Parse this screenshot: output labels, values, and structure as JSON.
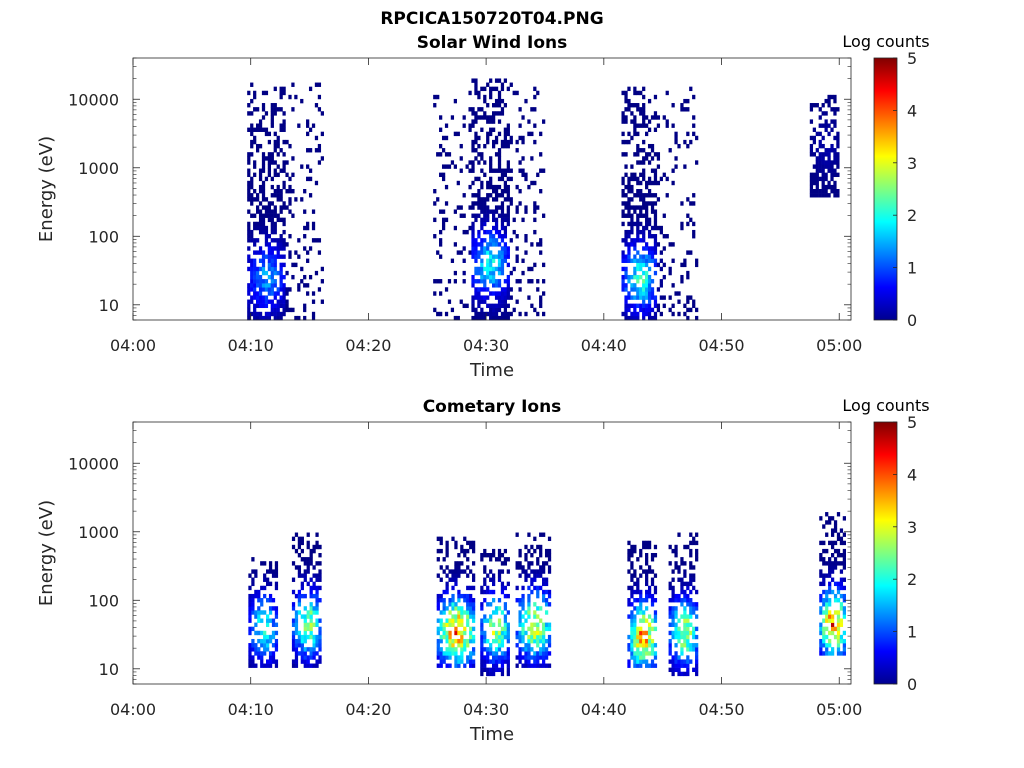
{
  "figure_title": "RPCICA150720T04.PNG",
  "colors": {
    "axis": "#262626",
    "background": "#ffffff"
  },
  "chart_data": [
    {
      "type": "heatmap",
      "title": "Solar Wind Ions",
      "xlabel": "Time",
      "ylabel": "Energy (eV)",
      "x_ticks": [
        "04:00",
        "04:10",
        "04:20",
        "04:30",
        "04:40",
        "04:50",
        "05:00"
      ],
      "xlim_minutes": [
        0,
        61
      ],
      "y_ticks": [
        "10",
        "100",
        "1000",
        "10000"
      ],
      "y_scale": "log",
      "ylim_eV": [
        6,
        40000
      ],
      "colorbar": {
        "label": "Log counts",
        "min": 0,
        "max": 5,
        "ticks": [
          "0",
          "1",
          "2",
          "3",
          "4",
          "5"
        ],
        "colormap": "jet"
      },
      "bursts": [
        {
          "t_start": 9.7,
          "t_end": 12.8,
          "t_sparse_end": 16.2,
          "e_low": 6,
          "e_high": 17000,
          "peak_log": 1.4,
          "peak_e": 25
        },
        {
          "t_start": 28.6,
          "t_end": 31.8,
          "t_sparse_start": 25.5,
          "t_sparse_end": 35.0,
          "e_low": 6,
          "e_high": 20000,
          "peak_log": 1.9,
          "peak_e": 40
        },
        {
          "t_start": 41.5,
          "t_end": 44.5,
          "t_sparse_end": 48.0,
          "e_low": 6,
          "e_high": 15000,
          "peak_log": 2.1,
          "peak_e": 25
        },
        {
          "t_start": 57.5,
          "t_end": 60.0,
          "e_low": 350,
          "e_high": 12000,
          "peak_log": 0.2,
          "peak_e": 2000
        }
      ]
    },
    {
      "type": "heatmap",
      "title": "Cometary Ions",
      "xlabel": "Time",
      "ylabel": "Energy (eV)",
      "x_ticks": [
        "04:00",
        "04:10",
        "04:20",
        "04:30",
        "04:40",
        "04:50",
        "05:00"
      ],
      "xlim_minutes": [
        0,
        61
      ],
      "y_ticks": [
        "10",
        "100",
        "1000",
        "10000"
      ],
      "y_scale": "log",
      "ylim_eV": [
        6,
        40000
      ],
      "colorbar": {
        "label": "Log counts",
        "min": 0,
        "max": 5,
        "ticks": [
          "0",
          "1",
          "2",
          "3",
          "4",
          "5"
        ],
        "colormap": "jet"
      },
      "bursts": [
        {
          "t_start": 9.8,
          "t_end": 12.2,
          "e_low": 10,
          "e_high": 400,
          "peak_log": 2.1,
          "peak_e": 40
        },
        {
          "t_start": 13.5,
          "t_end": 16.0,
          "e_low": 10,
          "e_high": 1000,
          "peak_log": 2.6,
          "peak_e": 45
        },
        {
          "t_start": 25.8,
          "t_end": 29.0,
          "e_low": 10,
          "e_high": 800,
          "peak_log": 3.9,
          "peak_e": 35
        },
        {
          "t_start": 29.5,
          "t_end": 32.0,
          "e_low": 8,
          "e_high": 600,
          "peak_log": 2.8,
          "peak_e": 40
        },
        {
          "t_start": 32.5,
          "t_end": 35.5,
          "e_low": 10,
          "e_high": 1000,
          "peak_log": 3.1,
          "peak_e": 45
        },
        {
          "t_start": 42.0,
          "t_end": 44.5,
          "e_low": 10,
          "e_high": 700,
          "peak_log": 3.7,
          "peak_e": 30
        },
        {
          "t_start": 45.5,
          "t_end": 48.0,
          "e_low": 8,
          "e_high": 1000,
          "peak_log": 2.8,
          "peak_e": 35
        },
        {
          "t_start": 58.3,
          "t_end": 60.5,
          "e_low": 15,
          "e_high": 2000,
          "peak_log": 4.0,
          "peak_e": 45
        }
      ]
    }
  ]
}
